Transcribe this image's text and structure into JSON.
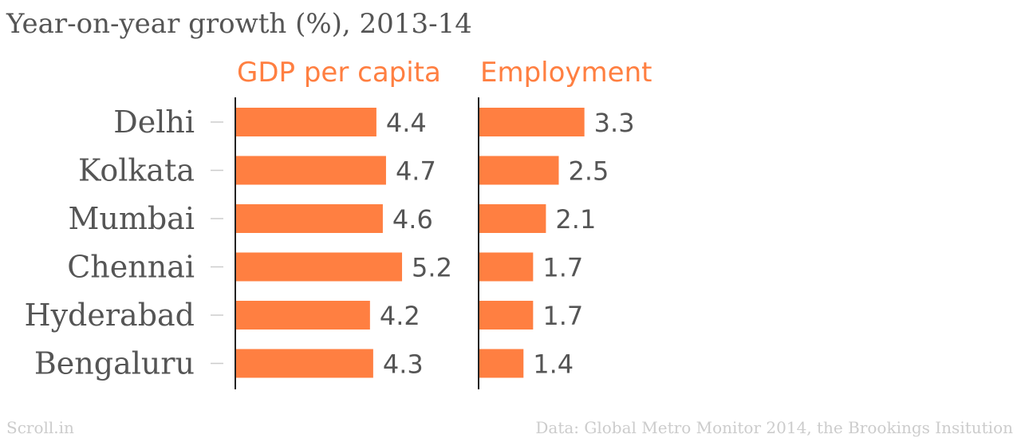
{
  "page": {
    "title": "Year-on-year growth (%), 2013-14",
    "source_left": "Scroll.in",
    "source_right": "Data: Global Metro Monitor 2014, the Brookings Insitution"
  },
  "colors": {
    "bar": "#ff7f41",
    "text": "#555555",
    "footer": "#cccccc",
    "axis": "#222222"
  },
  "chart_data": {
    "type": "bar",
    "orientation": "horizontal",
    "title": "Year-on-year growth (%), 2013-14",
    "categories": [
      "Delhi",
      "Kolkata",
      "Mumbai",
      "Chennai",
      "Hyderabad",
      "Bengaluru"
    ],
    "series": [
      {
        "name": "GDP per capita",
        "values": [
          4.4,
          4.7,
          4.6,
          5.2,
          4.2,
          4.3
        ]
      },
      {
        "name": "Employment",
        "values": [
          3.3,
          2.5,
          2.1,
          1.7,
          1.7,
          1.4
        ]
      }
    ],
    "legend": "none",
    "grid": false
  }
}
